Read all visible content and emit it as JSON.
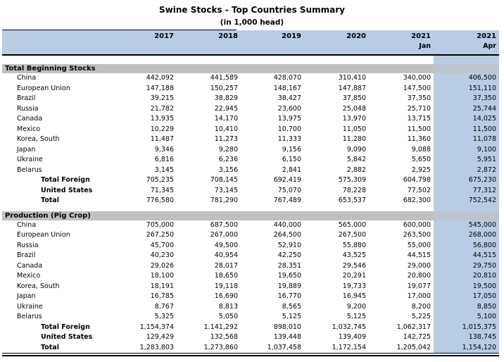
{
  "title": "Swine Stocks - Top Countries Summary",
  "subtitle": "(in 1,000 head)",
  "columns": [
    {
      "year": "2017",
      "sub": ""
    },
    {
      "year": "2018",
      "sub": ""
    },
    {
      "year": "2019",
      "sub": ""
    },
    {
      "year": "2020",
      "sub": ""
    },
    {
      "year": "2021",
      "sub": "Jan"
    },
    {
      "year": "2021",
      "sub": "Apr"
    }
  ],
  "colors": {
    "header_bg": "#b8cce4",
    "highlight_column_bg": "#b8cce4",
    "section_band_bg": "#c0c0c0",
    "section_band_highlight_bg": "#bdc4cd",
    "rule": "#000000"
  },
  "sections": [
    {
      "title": "Total Beginning Stocks",
      "rows": [
        {
          "label": "China",
          "type": "country",
          "values": [
            "442,092",
            "441,589",
            "428,070",
            "310,410",
            "340,000",
            "406,500"
          ]
        },
        {
          "label": "European Union",
          "type": "country",
          "values": [
            "147,188",
            "150,257",
            "148,167",
            "147,887",
            "147,500",
            "151,110"
          ]
        },
        {
          "label": "Brazil",
          "type": "country",
          "values": [
            "39,215",
            "38,829",
            "38,427",
            "37,850",
            "37,350",
            "37,350"
          ]
        },
        {
          "label": "Russia",
          "type": "country",
          "values": [
            "21,782",
            "22,945",
            "23,600",
            "25,048",
            "25,710",
            "25,744"
          ]
        },
        {
          "label": "Canada",
          "type": "country",
          "values": [
            "13,935",
            "14,170",
            "13,975",
            "13,970",
            "13,715",
            "14,025"
          ]
        },
        {
          "label": "Mexico",
          "type": "country",
          "values": [
            "10,229",
            "10,410",
            "10,700",
            "11,050",
            "11,500",
            "11,500"
          ]
        },
        {
          "label": "Korea, South",
          "type": "country",
          "values": [
            "11,487",
            "11,273",
            "11,333",
            "11,280",
            "11,360",
            "11,078"
          ]
        },
        {
          "label": "Japan",
          "type": "country",
          "values": [
            "9,346",
            "9,280",
            "9,156",
            "9,090",
            "9,088",
            "9,100"
          ]
        },
        {
          "label": "Ukraine",
          "type": "country",
          "values": [
            "6,816",
            "6,236",
            "6,150",
            "5,842",
            "5,650",
            "5,951"
          ]
        },
        {
          "label": "Belarus",
          "type": "country",
          "values": [
            "3,145",
            "3,156",
            "2,841",
            "2,882",
            "2,925",
            "2,872"
          ]
        },
        {
          "label": "Total Foreign",
          "type": "total",
          "values": [
            "705,235",
            "708,145",
            "692,419",
            "575,309",
            "604,798",
            "675,230"
          ]
        },
        {
          "label": "United States",
          "type": "total",
          "values": [
            "71,345",
            "73,145",
            "75,070",
            "78,228",
            "77,502",
            "77,312"
          ]
        },
        {
          "label": "Total",
          "type": "total",
          "values": [
            "776,580",
            "781,290",
            "767,489",
            "653,537",
            "682,300",
            "752,542"
          ]
        }
      ]
    },
    {
      "title": "Production (Pig Crop)",
      "rows": [
        {
          "label": "China",
          "type": "country",
          "values": [
            "705,000",
            "687,500",
            "440,000",
            "565,000",
            "600,000",
            "545,000"
          ]
        },
        {
          "label": "European Union",
          "type": "country",
          "values": [
            "267,250",
            "267,000",
            "264,500",
            "267,500",
            "263,500",
            "268,000"
          ]
        },
        {
          "label": "Russia",
          "type": "country",
          "values": [
            "45,700",
            "49,500",
            "52,910",
            "55,880",
            "55,000",
            "56,800"
          ]
        },
        {
          "label": "Brazil",
          "type": "country",
          "values": [
            "40,230",
            "40,954",
            "42,250",
            "43,525",
            "44,515",
            "44,515"
          ]
        },
        {
          "label": "Canada",
          "type": "country",
          "values": [
            "29,026",
            "28,017",
            "28,351",
            "29,546",
            "29,000",
            "29,750"
          ]
        },
        {
          "label": "Mexico",
          "type": "country",
          "values": [
            "18,100",
            "18,650",
            "19,650",
            "20,291",
            "20,800",
            "20,810"
          ]
        },
        {
          "label": "Korea, South",
          "type": "country",
          "values": [
            "18,191",
            "19,118",
            "19,889",
            "19,733",
            "19,077",
            "19,500"
          ]
        },
        {
          "label": "Japan",
          "type": "country",
          "values": [
            "16,785",
            "16,690",
            "16,770",
            "16,945",
            "17,000",
            "17,050"
          ]
        },
        {
          "label": "Ukraine",
          "type": "country",
          "values": [
            "8,767",
            "8,813",
            "8,565",
            "9,200",
            "8,200",
            "8,850"
          ]
        },
        {
          "label": "Belarus",
          "type": "country",
          "values": [
            "5,325",
            "5,050",
            "5,125",
            "5,125",
            "5,225",
            "5,100"
          ]
        },
        {
          "label": "Total Foreign",
          "type": "total",
          "values": [
            "1,154,374",
            "1,141,292",
            "898,010",
            "1,032,745",
            "1,062,317",
            "1,015,375"
          ]
        },
        {
          "label": "United States",
          "type": "total",
          "values": [
            "129,429",
            "132,568",
            "139,448",
            "139,409",
            "142,725",
            "138,745"
          ]
        },
        {
          "label": "Total",
          "type": "total",
          "values": [
            "1,283,803",
            "1,273,860",
            "1,037,458",
            "1,172,154",
            "1,205,042",
            "1,154,120"
          ]
        }
      ]
    }
  ]
}
